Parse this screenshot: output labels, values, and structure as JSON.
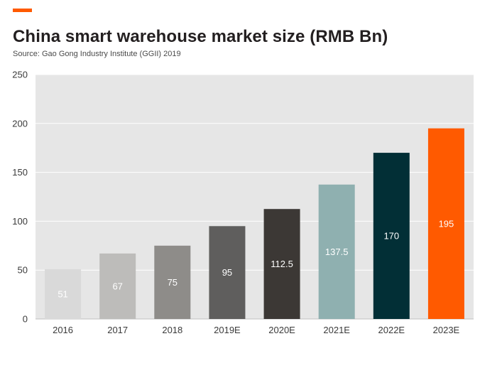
{
  "header": {
    "title": "China smart warehouse market size (RMB Bn)",
    "subtitle": "Source: Gao Gong Industry Institute (GGII) 2019"
  },
  "colors": {
    "accent": "#ff5a00",
    "plot_background": "#e6e6e6",
    "gridline": "#ffffff",
    "value_label": "#ffffff"
  },
  "chart_data": {
    "type": "bar",
    "title": "China smart warehouse market size (RMB Bn)",
    "xlabel": "",
    "ylabel": "",
    "ylim": [
      0,
      250
    ],
    "yticks": [
      0,
      50,
      100,
      150,
      200,
      250
    ],
    "grid": true,
    "legend": "none",
    "categories": [
      "2016",
      "2017",
      "2018",
      "2019E",
      "2020E",
      "2021E",
      "2022E",
      "2023E"
    ],
    "values": [
      51,
      67,
      75,
      95,
      112.5,
      137.5,
      170,
      195
    ],
    "value_labels": [
      "51",
      "67",
      "75",
      "95",
      "112.5",
      "137.5",
      "170",
      "195"
    ],
    "bar_colors": [
      "#d9d9d9",
      "#bdbcba",
      "#8e8c89",
      "#5f5e5d",
      "#3c3835",
      "#8fb0b0",
      "#022f36",
      "#ff5a00"
    ]
  }
}
